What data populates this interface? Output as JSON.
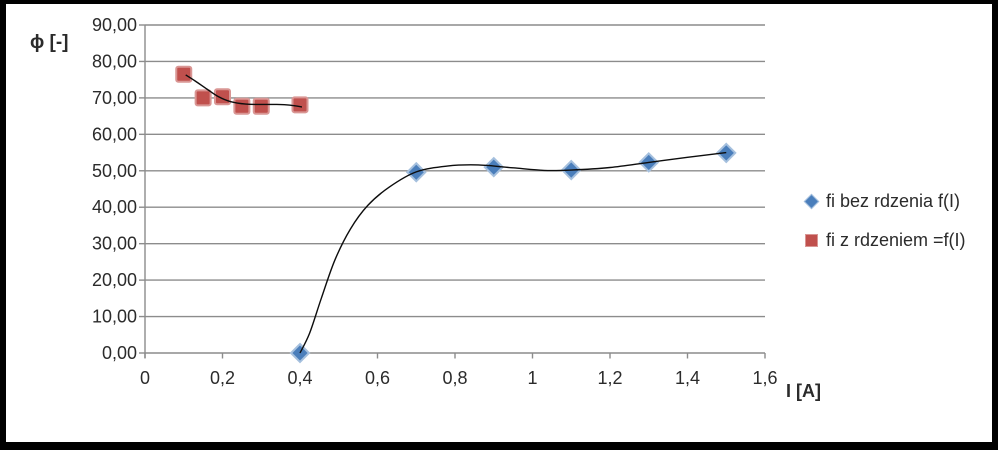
{
  "chart_data": {
    "type": "scatter",
    "title": "",
    "ylabel": "ϕ [-]",
    "xlabel": "I [A]",
    "xlim": [
      0,
      1.6
    ],
    "ylim": [
      0,
      90
    ],
    "x_ticks": [
      0,
      0.2,
      0.4,
      0.6,
      0.8,
      1,
      1.2,
      1.4,
      1.6
    ],
    "x_tick_labels": [
      "0",
      "0,2",
      "0,4",
      "0,6",
      "0,8",
      "1",
      "1,2",
      "1,4",
      "1,6"
    ],
    "y_ticks": [
      0,
      10,
      20,
      30,
      40,
      50,
      60,
      70,
      80,
      90
    ],
    "y_tick_labels": [
      "0,00",
      "10,00",
      "20,00",
      "30,00",
      "40,00",
      "50,00",
      "60,00",
      "70,00",
      "80,00",
      "90,00"
    ],
    "grid": "horizontal",
    "grid_color": "#8c8c8c",
    "axis_color": "#8c8c8c",
    "text_color": "#2b2b2b",
    "trendline_color": "#0d0d0d",
    "legend_position": "right",
    "series": [
      {
        "name": "fi bez rdzenia f(I)",
        "marker": "diamond",
        "color": "#4a7ebb",
        "marker_border": "#a5c0de",
        "points": [
          [
            0.4,
            0
          ],
          [
            0.7,
            49.6
          ],
          [
            0.9,
            51.0
          ],
          [
            1.1,
            50.2
          ],
          [
            1.3,
            52.3
          ],
          [
            1.5,
            54.9
          ]
        ],
        "trend": [
          [
            0.4,
            0
          ],
          [
            0.425,
            5.5
          ],
          [
            0.455,
            15
          ],
          [
            0.49,
            25.5
          ],
          [
            0.53,
            34
          ],
          [
            0.575,
            40.5
          ],
          [
            0.63,
            45.5
          ],
          [
            0.7,
            49.7
          ],
          [
            0.78,
            51.3
          ],
          [
            0.86,
            51.6
          ],
          [
            0.95,
            50.8
          ],
          [
            1.03,
            50.1
          ],
          [
            1.1,
            50.2
          ],
          [
            1.2,
            50.9
          ],
          [
            1.3,
            52.3
          ],
          [
            1.4,
            53.7
          ],
          [
            1.5,
            55
          ]
        ]
      },
      {
        "name": "fi z rdzeniem =f(I)",
        "marker": "square",
        "color": "#c0504d",
        "marker_border": "#d99694",
        "points": [
          [
            0.1,
            76.5
          ],
          [
            0.15,
            70.0
          ],
          [
            0.2,
            70.3
          ],
          [
            0.25,
            67.7
          ],
          [
            0.3,
            67.7
          ],
          [
            0.4,
            68.1
          ]
        ],
        "trend": [
          [
            0.105,
            76.3
          ],
          [
            0.13,
            74.6
          ],
          [
            0.16,
            72.4
          ],
          [
            0.19,
            70.3
          ],
          [
            0.22,
            69.0
          ],
          [
            0.26,
            68.3
          ],
          [
            0.3,
            68.2
          ],
          [
            0.34,
            68.2
          ],
          [
            0.375,
            68.0
          ],
          [
            0.405,
            67.5
          ]
        ]
      }
    ]
  }
}
